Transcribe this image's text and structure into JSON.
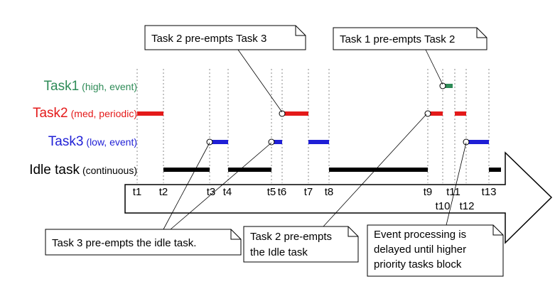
{
  "tasks": [
    {
      "name": "Task1",
      "detail": "(high, event)",
      "color": "#2e8b57"
    },
    {
      "name": "Task2",
      "detail": "(med, periodic)",
      "color": "#e41a1a"
    },
    {
      "name": "Task3",
      "detail": "(low, event)",
      "color": "#1f1fd6"
    },
    {
      "name": "Idle task",
      "detail": "(continuous)",
      "color": "#000000"
    }
  ],
  "time_labels": [
    "t1",
    "t2",
    "t3",
    "t4",
    "t5",
    "t6",
    "t7",
    "t8",
    "t9",
    "t10",
    "t11",
    "t12",
    "t13"
  ],
  "callouts": {
    "t2_preempts_t3": "Task 2 pre-empts Task 3",
    "t1_preempts_t2": "Task 1 pre-empts Task 2",
    "t3_preempts_idle": "Task 3 pre-empts the idle task.",
    "t2_preempts_idle_1": "Task 2 pre-empts",
    "t2_preempts_idle_2": "the Idle task",
    "event_delay_1": "Event processing is",
    "event_delay_2": "delayed until higher",
    "event_delay_3": "priority tasks block"
  }
}
